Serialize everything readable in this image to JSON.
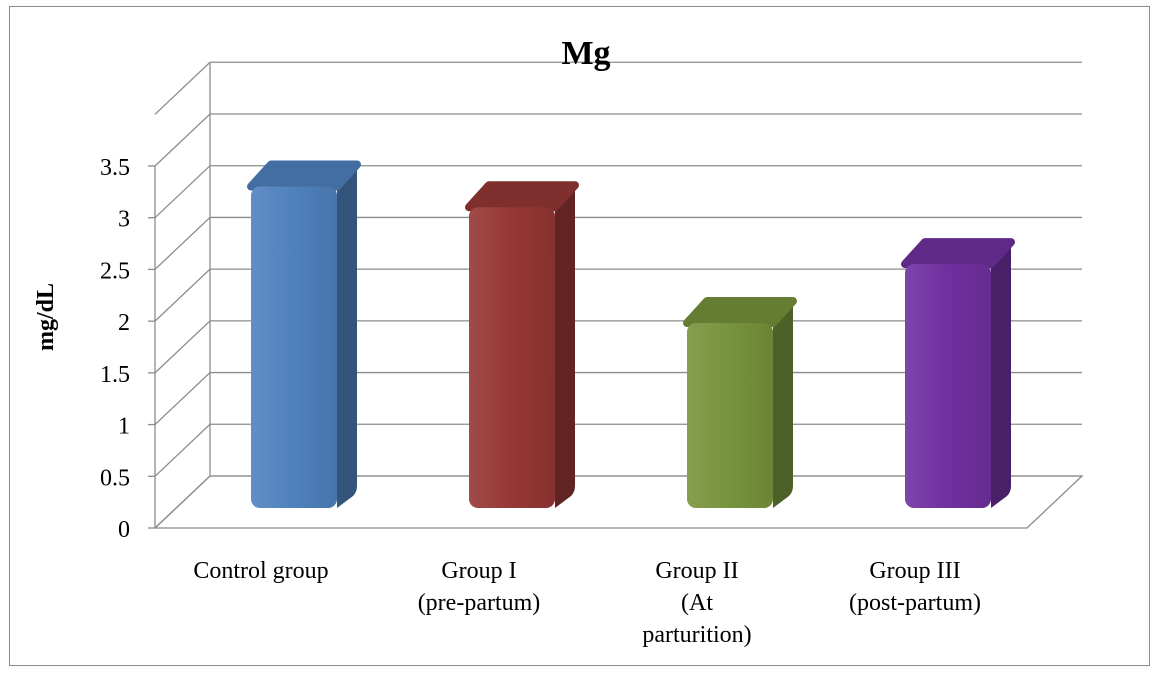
{
  "chart_data": {
    "type": "bar",
    "title": "Mg",
    "xlabel": "",
    "ylabel": "mg/dL",
    "categories": [
      [
        "Control group"
      ],
      [
        "Group I",
        "(pre-partum)"
      ],
      [
        "Group II",
        "(At",
        "parturition)"
      ],
      [
        "Group III",
        "(post-partum)"
      ]
    ],
    "series": [
      {
        "values": [
          3.35,
          3.15,
          2.03,
          2.6
        ]
      }
    ],
    "colors": [
      "#4f81bd",
      "#953735",
      "#77933c",
      "#7030a0"
    ],
    "ylim": [
      0,
      3.5
    ],
    "ytick_step": 0.5,
    "yticks": [
      "0",
      "0.5",
      "1",
      "1.5",
      "2",
      "2.5",
      "3",
      "3.5"
    ],
    "grid": true,
    "legend": "none",
    "style": "3d-column"
  }
}
